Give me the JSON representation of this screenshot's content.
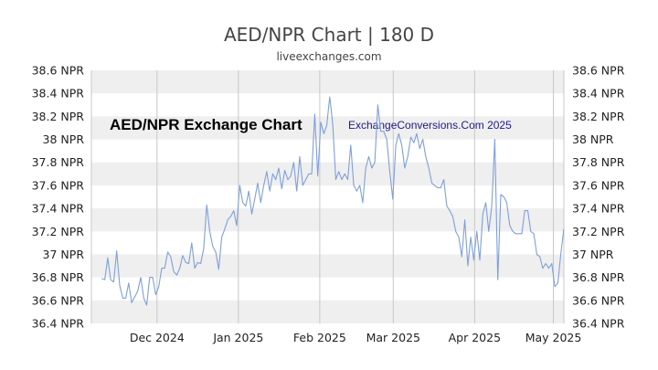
{
  "header": {
    "title": "AED/NPR Chart | 180 D",
    "subtitle": "liveexchanges.com"
  },
  "colors": {
    "line": "#7f9fdb",
    "band": "#efefef",
    "grid_vertical": "#c8c8c8",
    "axis_text": "#222222"
  },
  "chart_data": {
    "type": "line",
    "title": "AED/NPR Chart | 180 D",
    "annotations": [
      "AED/NPR Exchange Chart",
      "ExchangeConversions.Com 2025"
    ],
    "ylim": [
      36.4,
      38.6
    ],
    "yticks": [
      36.4,
      36.6,
      36.8,
      37.0,
      37.2,
      37.4,
      37.6,
      37.8,
      38.0,
      38.2,
      38.4,
      38.6
    ],
    "ytick_labels": [
      "36.4 NPR",
      "36.6 NPR",
      "36.8 NPR",
      "37 NPR",
      "37.2 NPR",
      "37.4 NPR",
      "37.6 NPR",
      "37.8 NPR",
      "38 NPR",
      "38.2 NPR",
      "38.4 NPR",
      "38.6 NPR"
    ],
    "x_range_days": [
      0,
      180
    ],
    "month_ticks": [
      {
        "label": "Dec 2024",
        "day": 25
      },
      {
        "label": "Jan 2025",
        "day": 56
      },
      {
        "label": "Feb 2025",
        "day": 87
      },
      {
        "label": "Mar 2025",
        "day": 115
      },
      {
        "label": "Apr 2025",
        "day": 146
      },
      {
        "label": "May 2025",
        "day": 176
      }
    ],
    "grid": "horizontal bands + vertical month lines",
    "right_axis": true,
    "series": [
      {
        "values": [
          36.79,
          36.78,
          36.97,
          36.78,
          36.76,
          37.03,
          36.73,
          36.62,
          36.62,
          36.75,
          36.58,
          36.63,
          36.68,
          36.8,
          36.62,
          36.56,
          36.8,
          36.8,
          36.65,
          36.72,
          36.88,
          36.88,
          37.02,
          36.98,
          36.85,
          36.82,
          36.88,
          36.99,
          36.93,
          36.92,
          37.1,
          36.88,
          36.93,
          36.92,
          37.05,
          37.43,
          37.2,
          37.07,
          37.02,
          36.87,
          37.15,
          37.22,
          37.3,
          37.33,
          37.38,
          37.25,
          37.6,
          37.45,
          37.42,
          37.55,
          37.35,
          37.48,
          37.62,
          37.45,
          37.6,
          37.72,
          37.55,
          37.7,
          37.65,
          37.75,
          37.57,
          37.73,
          37.65,
          37.68,
          37.8,
          37.55,
          37.85,
          37.6,
          37.65,
          37.7,
          37.7,
          38.22,
          37.68,
          38.15,
          38.05,
          38.12,
          38.37,
          38.13,
          37.65,
          37.72,
          37.65,
          37.7,
          37.65,
          37.95,
          37.6,
          37.55,
          37.6,
          37.45,
          37.75,
          37.85,
          37.75,
          37.8,
          38.3,
          38.07,
          38.07,
          38.0,
          37.72,
          37.48,
          37.95,
          38.05,
          37.95,
          37.75,
          37.85,
          38.02,
          37.97,
          38.05,
          37.92,
          38.0,
          37.85,
          37.75,
          37.62,
          37.6,
          37.58,
          37.58,
          37.65,
          37.42,
          37.38,
          37.33,
          37.2,
          37.15,
          36.98,
          37.3,
          36.9,
          37.15,
          36.95,
          37.2,
          36.95,
          37.35,
          37.45,
          37.2,
          37.42,
          38.0,
          36.78,
          37.52,
          37.5,
          37.45,
          37.25,
          37.2,
          37.18,
          37.18,
          37.18,
          37.38,
          37.38,
          37.2,
          37.18,
          37.0,
          36.98,
          36.88,
          36.92,
          36.88,
          36.92,
          36.72,
          36.75,
          37.0,
          37.22
        ]
      }
    ]
  }
}
